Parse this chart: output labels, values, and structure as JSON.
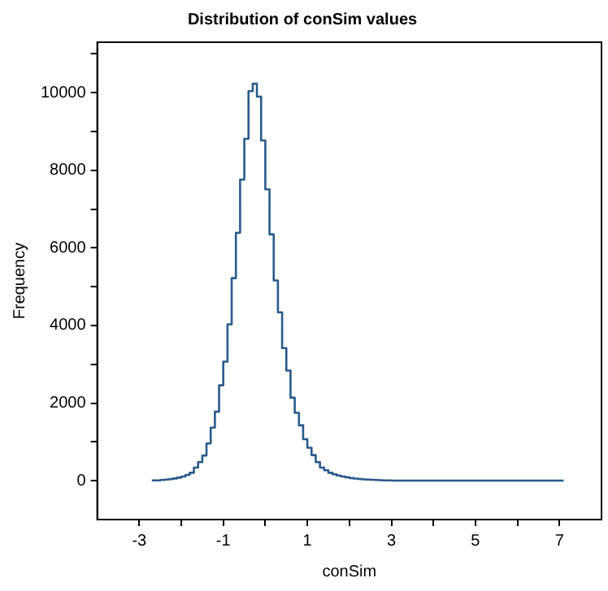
{
  "chart_data": {
    "type": "histogram",
    "title": "Distribution of conSim values",
    "xlabel": "conSim",
    "ylabel": "Frequency",
    "color": "#2a5a8c",
    "bins": [
      -2.7,
      -2.6,
      -2.5,
      -2.4,
      -2.3,
      -2.2,
      -2.1,
      -2.0,
      -1.9,
      -1.8,
      -1.7,
      -1.6,
      -1.5,
      -1.4,
      -1.3,
      -1.2,
      -1.1,
      -1.0,
      -0.9,
      -0.8,
      -0.7,
      -0.6,
      -0.5,
      -0.4,
      -0.3,
      -0.2,
      -0.1,
      0.0,
      0.1,
      0.2,
      0.3,
      0.4,
      0.5,
      0.6,
      0.7,
      0.8,
      0.9,
      1.0,
      1.1,
      1.2,
      1.3,
      1.4,
      1.5,
      1.6,
      1.7,
      1.8,
      1.9,
      2.0,
      2.1,
      2.2,
      2.3,
      2.4,
      2.5,
      2.6,
      2.7,
      2.8,
      2.9,
      3.0,
      7.1
    ],
    "values": [
      10,
      10,
      20,
      30,
      40,
      60,
      80,
      110,
      150,
      205,
      340,
      480,
      650,
      960,
      1370,
      1780,
      2460,
      3070,
      4030,
      5220,
      6390,
      7760,
      8810,
      10040,
      10230,
      9900,
      8770,
      7510,
      6350,
      5160,
      4340,
      3420,
      2840,
      2140,
      1750,
      1430,
      1070,
      850,
      660,
      480,
      340,
      270,
      205,
      165,
      135,
      110,
      90,
      70,
      55,
      45,
      35,
      30,
      25,
      20,
      15,
      10,
      10,
      5
    ],
    "xlim": [
      -4,
      8
    ],
    "ylim": [
      -1000,
      11300
    ],
    "xticks": [
      -3,
      {
        "value": -2,
        "label": null
      },
      -1,
      {
        "value": 0,
        "label": null
      },
      1,
      {
        "value": 2,
        "label": null
      },
      3,
      {
        "value": 4,
        "label": null
      },
      5,
      {
        "value": 6,
        "label": null
      },
      7
    ],
    "yticks": [
      0,
      {
        "value": 1000,
        "label": null
      },
      2000,
      {
        "value": 3000,
        "label": null
      },
      4000,
      {
        "value": 5000,
        "label": null
      },
      6000,
      {
        "value": 7000,
        "label": null
      },
      8000,
      {
        "value": 9000,
        "label": null
      },
      10000,
      {
        "value": 11000,
        "label": null
      }
    ]
  }
}
